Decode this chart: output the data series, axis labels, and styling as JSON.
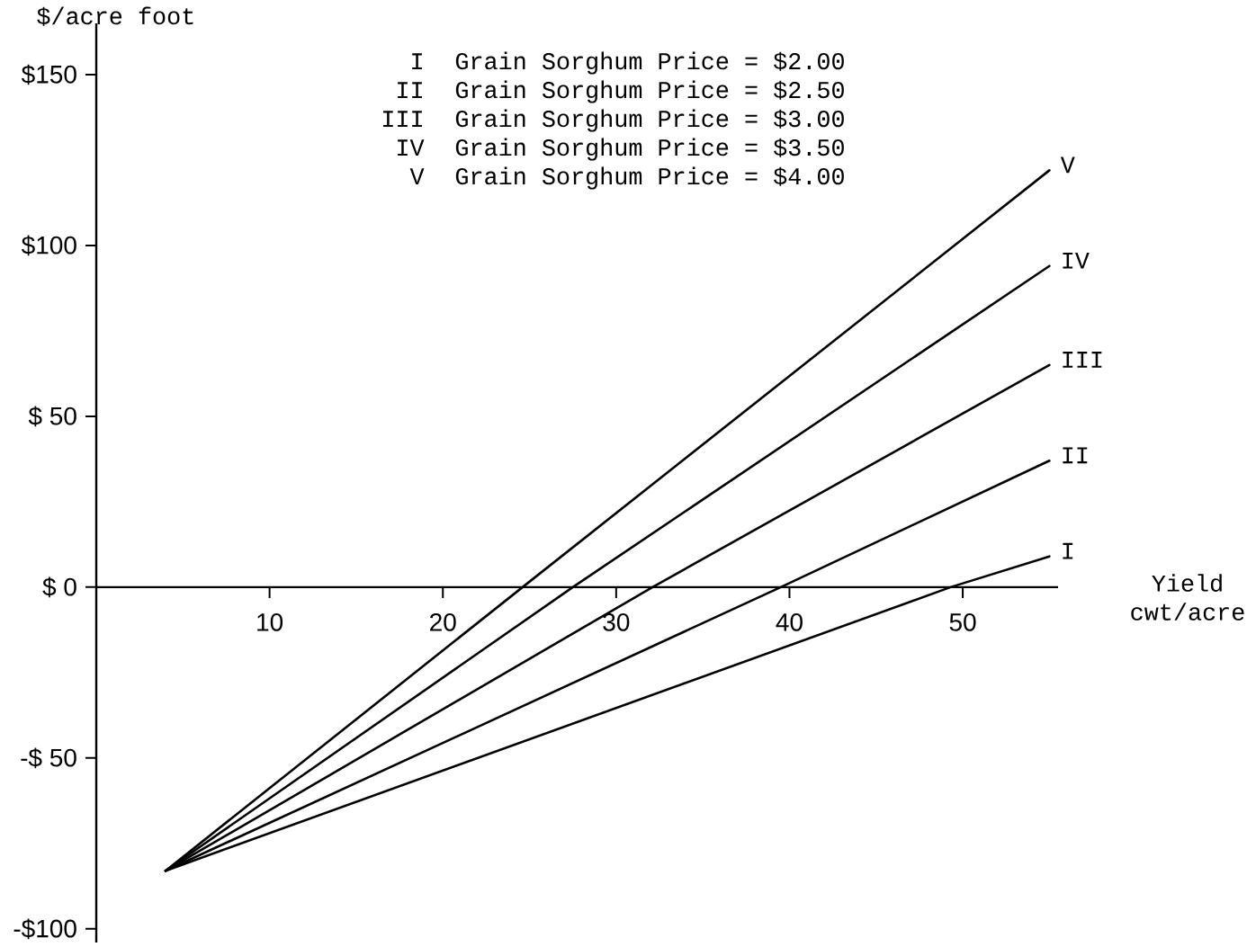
{
  "chart_data": {
    "type": "line",
    "xlabel": "Yield cwt/acre",
    "ylabel": "$/acre foot",
    "annotations": [
      "Grain Sorghum Price = $2.00",
      "Grain Sorghum Price = $2.50",
      "Grain Sorghum Price = $3.00",
      "Grain Sorghum Price = $3.50",
      "Grain Sorghum Price = $4.00"
    ],
    "xlim": [
      0,
      55.5
    ],
    "ylim": [
      -104,
      165
    ],
    "xticks": [
      10,
      20,
      30,
      40,
      50
    ],
    "yticks": [
      {
        "value": 150,
        "label": "$150"
      },
      {
        "value": 100,
        "label": "$100"
      },
      {
        "value": 50,
        "label": "$ 50"
      },
      {
        "value": 0,
        "label": "$ 0"
      },
      {
        "value": -50,
        "label": "-$ 50"
      },
      {
        "value": -100,
        "label": "-$100"
      }
    ],
    "series": [
      {
        "name": "I",
        "color": "#000000",
        "x": [
          4,
          49.3,
          55
        ],
        "values": [
          -83,
          0,
          9
        ]
      },
      {
        "name": "II",
        "color": "#000000",
        "x": [
          4,
          39.5,
          55
        ],
        "values": [
          -83,
          0,
          37
        ]
      },
      {
        "name": "III",
        "color": "#000000",
        "x": [
          4,
          32.1,
          55
        ],
        "values": [
          -83,
          0,
          65
        ]
      },
      {
        "name": "IV",
        "color": "#000000",
        "x": [
          4,
          27.5,
          55
        ],
        "values": [
          -83,
          0,
          94
        ]
      },
      {
        "name": "V",
        "color": "#000000",
        "x": [
          4,
          24.6,
          55
        ],
        "values": [
          -83,
          0,
          122
        ]
      }
    ]
  }
}
